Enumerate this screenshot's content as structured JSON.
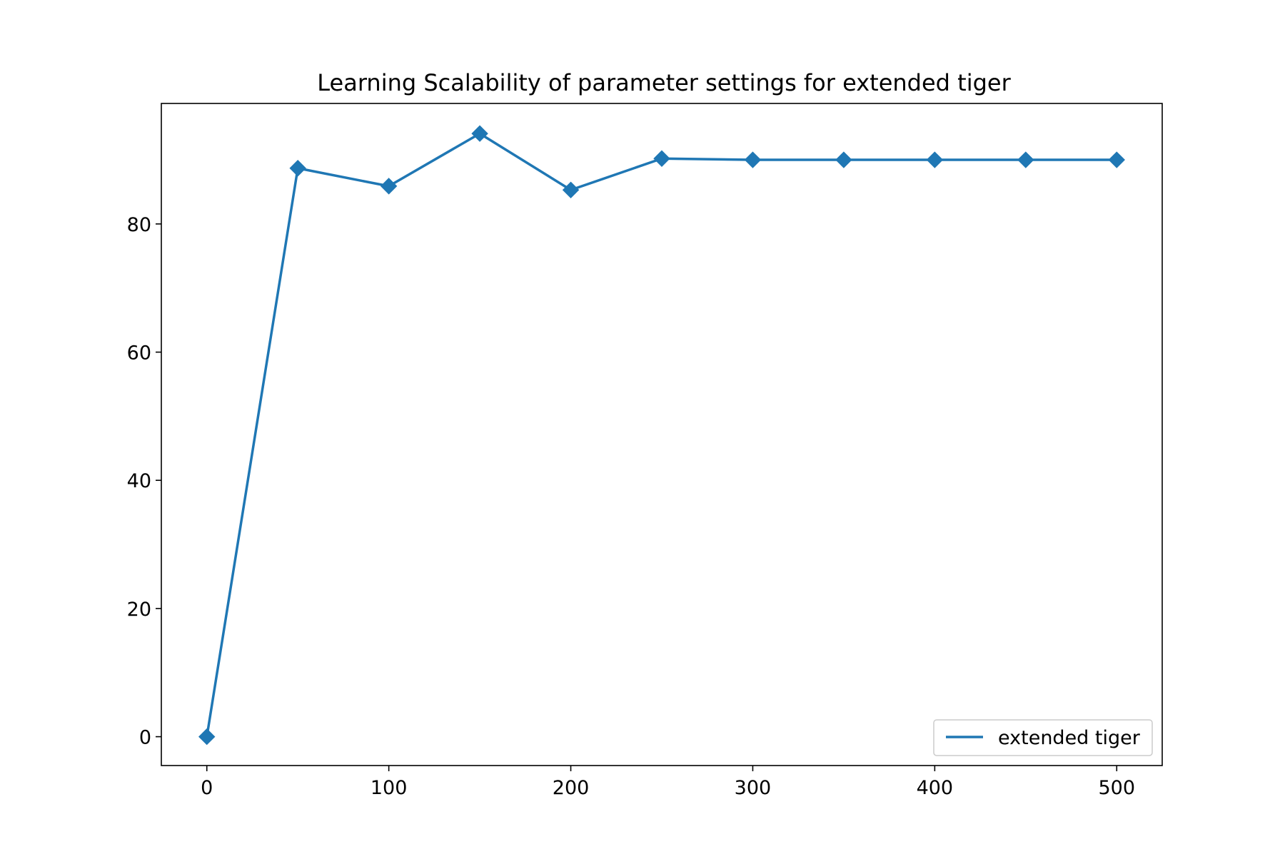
{
  "chart_data": {
    "type": "line",
    "title": "Learning Scalability of parameter settings for extended tiger",
    "xlabel": "",
    "ylabel": "",
    "xlim": [
      -25,
      525
    ],
    "ylim": [
      -4.5,
      98.8
    ],
    "x_ticks": [
      0,
      100,
      200,
      300,
      400,
      500
    ],
    "y_ticks": [
      0,
      20,
      40,
      60,
      80
    ],
    "grid": false,
    "legend": {
      "position": "lower right"
    },
    "series": [
      {
        "name": "extended tiger",
        "color": "#1f77b4",
        "marker": "diamond",
        "x": [
          0,
          50,
          100,
          150,
          200,
          250,
          300,
          350,
          400,
          450,
          500
        ],
        "y": [
          0,
          88.7,
          85.9,
          94.1,
          85.3,
          90.2,
          90.0,
          90.0,
          90.0,
          90.0,
          90.0
        ]
      }
    ]
  }
}
